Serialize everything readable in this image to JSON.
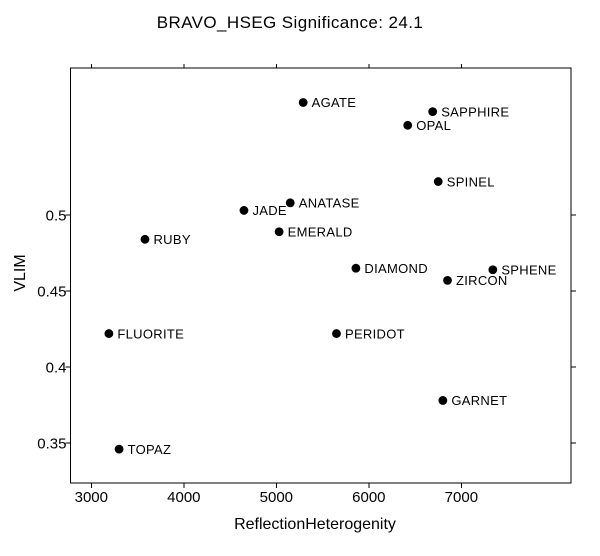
{
  "colors": {
    "background": "#ffffff",
    "foreground": "#000000"
  },
  "chart_data": {
    "type": "scatter",
    "title": "BRAVO_HSEG Significance: 24.1",
    "xlabel": "ReflectionHeterogenity",
    "ylabel": "VLIM",
    "xlim": [
      2775,
      8185
    ],
    "ylim": [
      0.3237,
      0.5967
    ],
    "x_ticks": [
      3000,
      4000,
      5000,
      6000,
      7000
    ],
    "x_tick_labels": [
      "3000",
      "4000",
      "5000",
      "6000",
      "7000"
    ],
    "y_ticks": [
      0.35,
      0.4,
      0.45,
      0.5
    ],
    "y_tick_labels": [
      "0.35",
      "0.4",
      "0.45",
      "0.5"
    ],
    "grid": false,
    "legend": "none",
    "marker": {
      "shape": "filled-circle",
      "color": "#000000",
      "radius": 4.4
    },
    "points": [
      {
        "label": "AGATE",
        "x": 5290,
        "y": 0.574
      },
      {
        "label": "SAPPHIRE",
        "x": 6690,
        "y": 0.568
      },
      {
        "label": "OPAL",
        "x": 6420,
        "y": 0.559
      },
      {
        "label": "SPINEL",
        "x": 6750,
        "y": 0.522
      },
      {
        "label": "ANATASE",
        "x": 5150,
        "y": 0.508
      },
      {
        "label": "JADE",
        "x": 4650,
        "y": 0.503
      },
      {
        "label": "EMERALD",
        "x": 5030,
        "y": 0.489
      },
      {
        "label": "RUBY",
        "x": 3580,
        "y": 0.484
      },
      {
        "label": "DIAMOND",
        "x": 5860,
        "y": 0.465
      },
      {
        "label": "SPHENE",
        "x": 7340,
        "y": 0.464
      },
      {
        "label": "ZIRCON",
        "x": 6850,
        "y": 0.457
      },
      {
        "label": "FLUORITE",
        "x": 3190,
        "y": 0.422
      },
      {
        "label": "PERIDOT",
        "x": 5650,
        "y": 0.422
      },
      {
        "label": "GARNET",
        "x": 6800,
        "y": 0.378
      },
      {
        "label": "TOPAZ",
        "x": 3300,
        "y": 0.346
      }
    ]
  }
}
